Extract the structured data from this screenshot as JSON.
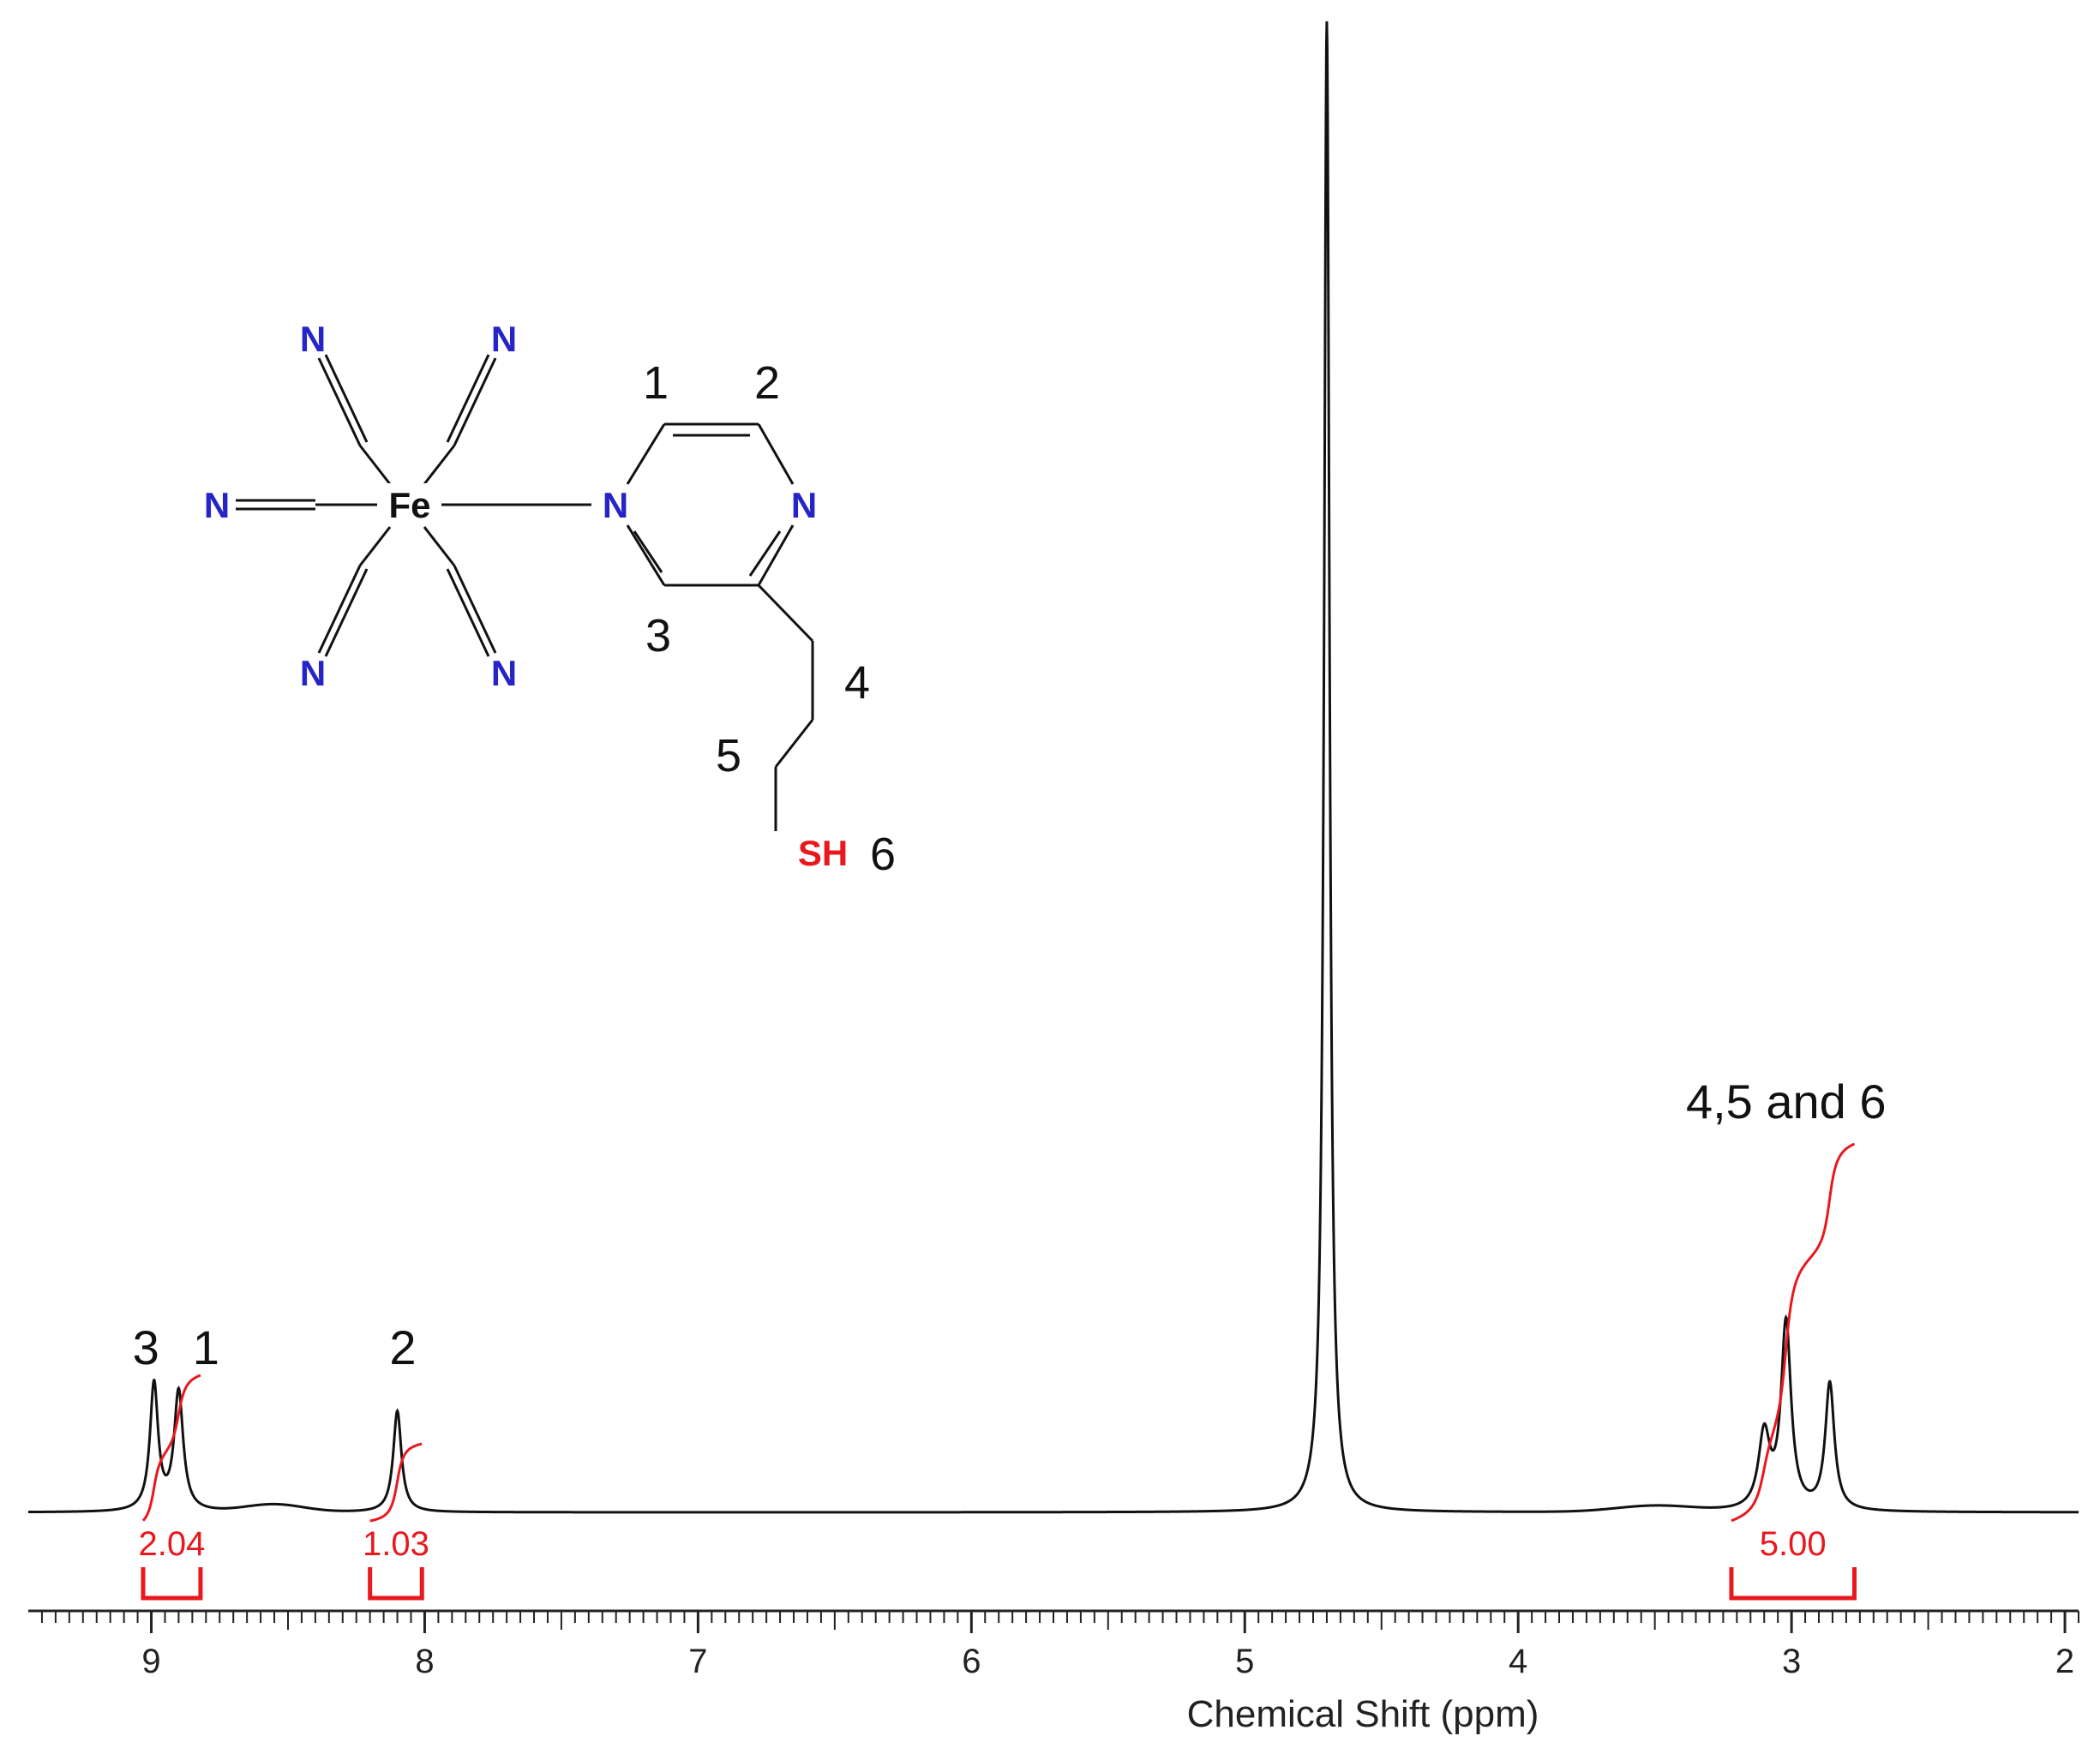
{
  "chart_data": {
    "type": "line",
    "xlabel": "Chemical Shift (ppm)",
    "xlim": [
      9.45,
      1.95
    ],
    "x_ticks": [
      9,
      8,
      7,
      6,
      5,
      4,
      3,
      2
    ],
    "x_tick_labels": [
      "9",
      "8",
      "7",
      "6",
      "5",
      "4",
      "3",
      "2"
    ],
    "grid": false,
    "series": [
      {
        "peaks": [
          {
            "ppm": 8.99,
            "height": 0.085,
            "width": 0.018
          },
          {
            "ppm": 8.9,
            "height": 0.08,
            "width": 0.02
          },
          {
            "ppm": 8.1,
            "height": 0.068,
            "width": 0.018
          },
          {
            "ppm": 4.7,
            "height": 1.0,
            "width": 0.012
          },
          {
            "ppm": 3.1,
            "height": 0.05,
            "width": 0.025
          },
          {
            "ppm": 3.02,
            "height": 0.125,
            "width": 0.022
          },
          {
            "ppm": 2.86,
            "height": 0.085,
            "width": 0.02
          }
        ],
        "broad_humps": [
          {
            "ppm": 8.55,
            "height": 0.005,
            "width": 0.15
          },
          {
            "ppm": 3.5,
            "height": 0.004,
            "width": 0.2
          }
        ]
      }
    ],
    "integrals": [
      {
        "from_ppm": 9.03,
        "to_ppm": 8.82,
        "value": "2.04"
      },
      {
        "from_ppm": 8.2,
        "to_ppm": 8.01,
        "value": "1.03"
      },
      {
        "from_ppm": 3.22,
        "to_ppm": 2.77,
        "value": "5.00"
      }
    ],
    "annotations": [
      {
        "text": "3",
        "ppm": 9.02
      },
      {
        "text": "1",
        "ppm": 8.8
      },
      {
        "text": "2",
        "ppm": 8.08
      },
      {
        "text": "4,5 and 6",
        "ppm": 3.02
      }
    ]
  },
  "structure": {
    "atoms": {
      "fe": "Fe",
      "n": "N",
      "sh": "SH"
    },
    "position_labels": [
      "1",
      "2",
      "3",
      "4",
      "5",
      "6"
    ],
    "colors": {
      "nitrogen": "#2424c8",
      "sulfur": "#e8191e",
      "integral": "#e8191e",
      "trace": "#111111"
    }
  }
}
